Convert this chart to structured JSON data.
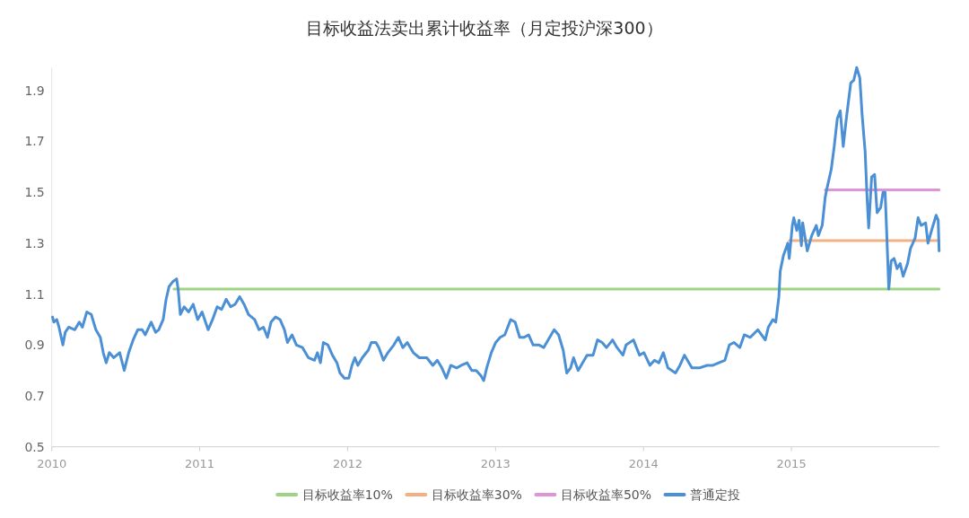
{
  "chart_data": {
    "type": "line",
    "title": "目标收益法卖出累计收益率（月定投沪深300）",
    "xlim": [
      2010,
      2016
    ],
    "xticks": [
      2010,
      2011,
      2012,
      2013,
      2014,
      2015
    ],
    "ylim": [
      0.5,
      1.99
    ],
    "yticks": [
      0.5,
      0.7,
      0.9,
      1.1,
      1.3,
      1.5,
      1.7,
      1.9
    ],
    "legend": "bottom",
    "line_style": "solid",
    "series": [
      {
        "name": "目标收益率10%",
        "color": "#9fd386",
        "x": [
          2010.826,
          2015.998
        ],
        "values": [
          1.12,
          1.12
        ]
      },
      {
        "name": "目标收益率30%",
        "color": "#f2b183",
        "x": [
          2014.986,
          2015.998
        ],
        "values": [
          1.31,
          1.31
        ]
      },
      {
        "name": "目标收益率50%",
        "color": "#dc95d9",
        "x": [
          2015.229,
          2015.998
        ],
        "values": [
          1.51,
          1.51
        ]
      },
      {
        "name": "普通定投",
        "color": "#4b8fd5",
        "x": [
          2010.005,
          2010.014,
          2010.034,
          2010.049,
          2010.075,
          2010.091,
          2010.115,
          2010.156,
          2010.186,
          2010.207,
          2010.237,
          2010.267,
          2010.298,
          2010.328,
          2010.348,
          2010.368,
          2010.389,
          2010.419,
          2010.459,
          2010.49,
          2010.52,
          2010.55,
          2010.581,
          2010.611,
          2010.632,
          2010.672,
          2010.702,
          2010.723,
          2010.753,
          2010.773,
          2010.793,
          2010.82,
          2010.844,
          2010.854,
          2010.869,
          2010.895,
          2010.925,
          2010.956,
          2010.986,
          2011.016,
          2011.057,
          2011.087,
          2011.118,
          2011.148,
          2011.179,
          2011.209,
          2011.239,
          2011.27,
          2011.3,
          2011.33,
          2011.371,
          2011.401,
          2011.431,
          2011.458,
          2011.482,
          2011.513,
          2011.543,
          2011.573,
          2011.593,
          2011.624,
          2011.654,
          2011.695,
          2011.735,
          2011.776,
          2011.796,
          2011.816,
          2011.836,
          2011.867,
          2011.897,
          2011.928,
          2011.948,
          2011.978,
          2012.008,
          2012.029,
          2012.049,
          2012.069,
          2012.099,
          2012.14,
          2012.16,
          2012.191,
          2012.211,
          2012.242,
          2012.272,
          2012.312,
          2012.343,
          2012.373,
          2012.403,
          2012.444,
          2012.485,
          2012.535,
          2012.576,
          2012.606,
          2012.637,
          2012.667,
          2012.697,
          2012.737,
          2012.768,
          2012.808,
          2012.839,
          2012.869,
          2012.9,
          2012.92,
          2012.94,
          2012.971,
          2013.001,
          2013.031,
          2013.062,
          2013.102,
          2013.132,
          2013.163,
          2013.193,
          2013.223,
          2013.254,
          2013.294,
          2013.325,
          2013.355,
          2013.396,
          2013.426,
          2013.457,
          2013.481,
          2013.507,
          2013.527,
          2013.558,
          2013.588,
          2013.618,
          2013.659,
          2013.689,
          2013.72,
          2013.75,
          2013.791,
          2013.821,
          2013.861,
          2013.882,
          2013.932,
          2013.973,
          2014.003,
          2014.043,
          2014.074,
          2014.104,
          2014.134,
          2014.165,
          2014.216,
          2014.246,
          2014.277,
          2014.327,
          2014.378,
          2014.429,
          2014.469,
          2014.509,
          2014.55,
          2014.58,
          2014.611,
          2014.651,
          2014.681,
          2014.722,
          2014.773,
          2014.823,
          2014.844,
          2014.874,
          2014.894,
          2014.915,
          2014.924,
          2014.945,
          2014.975,
          2014.985,
          2015.006,
          2015.016,
          2015.036,
          2015.052,
          2015.067,
          2015.076,
          2015.107,
          2015.137,
          2015.168,
          2015.182,
          2015.208,
          2015.228,
          2015.238,
          2015.269,
          2015.289,
          2015.31,
          2015.33,
          2015.35,
          2015.371,
          2015.401,
          2015.421,
          2015.441,
          2015.462,
          2015.477,
          2015.498,
          2015.512,
          2015.522,
          2015.542,
          2015.562,
          2015.579,
          2015.603,
          2015.619,
          2015.633,
          2015.644,
          2015.658,
          2015.674,
          2015.694,
          2015.714,
          2015.735,
          2015.755,
          2015.785,
          2015.805,
          2015.836,
          2015.856,
          2015.876,
          2015.907,
          2015.923,
          2015.947,
          2015.978,
          2015.992,
          2015.998
        ],
        "values": [
          1.01,
          0.99,
          1.0,
          0.97,
          0.9,
          0.95,
          0.97,
          0.96,
          0.99,
          0.97,
          1.03,
          1.02,
          0.96,
          0.93,
          0.87,
          0.83,
          0.87,
          0.85,
          0.87,
          0.8,
          0.87,
          0.92,
          0.96,
          0.96,
          0.94,
          0.99,
          0.95,
          0.96,
          1.0,
          1.08,
          1.13,
          1.15,
          1.16,
          1.12,
          1.02,
          1.05,
          1.03,
          1.06,
          1.0,
          1.03,
          0.96,
          1.0,
          1.05,
          1.04,
          1.08,
          1.05,
          1.06,
          1.09,
          1.06,
          1.02,
          1.0,
          0.96,
          0.97,
          0.93,
          0.99,
          1.01,
          1.0,
          0.96,
          0.91,
          0.94,
          0.9,
          0.89,
          0.85,
          0.84,
          0.87,
          0.83,
          0.91,
          0.9,
          0.86,
          0.83,
          0.79,
          0.77,
          0.77,
          0.82,
          0.85,
          0.82,
          0.85,
          0.88,
          0.91,
          0.91,
          0.89,
          0.84,
          0.87,
          0.9,
          0.93,
          0.89,
          0.91,
          0.87,
          0.85,
          0.85,
          0.82,
          0.84,
          0.81,
          0.77,
          0.82,
          0.81,
          0.82,
          0.83,
          0.8,
          0.8,
          0.78,
          0.76,
          0.81,
          0.87,
          0.91,
          0.93,
          0.94,
          1.0,
          0.99,
          0.93,
          0.93,
          0.94,
          0.9,
          0.9,
          0.89,
          0.92,
          0.96,
          0.94,
          0.88,
          0.79,
          0.81,
          0.85,
          0.8,
          0.83,
          0.86,
          0.86,
          0.92,
          0.91,
          0.89,
          0.92,
          0.89,
          0.86,
          0.9,
          0.92,
          0.86,
          0.87,
          0.82,
          0.84,
          0.83,
          0.87,
          0.81,
          0.79,
          0.82,
          0.86,
          0.81,
          0.81,
          0.82,
          0.82,
          0.83,
          0.84,
          0.9,
          0.91,
          0.89,
          0.94,
          0.93,
          0.96,
          0.92,
          0.97,
          1.0,
          0.99,
          1.09,
          1.19,
          1.25,
          1.3,
          1.24,
          1.37,
          1.4,
          1.35,
          1.39,
          1.29,
          1.38,
          1.27,
          1.33,
          1.37,
          1.33,
          1.37,
          1.48,
          1.51,
          1.59,
          1.68,
          1.79,
          1.82,
          1.68,
          1.79,
          1.93,
          1.94,
          1.99,
          1.95,
          1.81,
          1.66,
          1.47,
          1.36,
          1.56,
          1.57,
          1.42,
          1.44,
          1.5,
          1.5,
          1.34,
          1.12,
          1.23,
          1.24,
          1.2,
          1.22,
          1.17,
          1.22,
          1.28,
          1.32,
          1.4,
          1.37,
          1.38,
          1.3,
          1.35,
          1.41,
          1.39,
          1.27
        ]
      }
    ]
  }
}
